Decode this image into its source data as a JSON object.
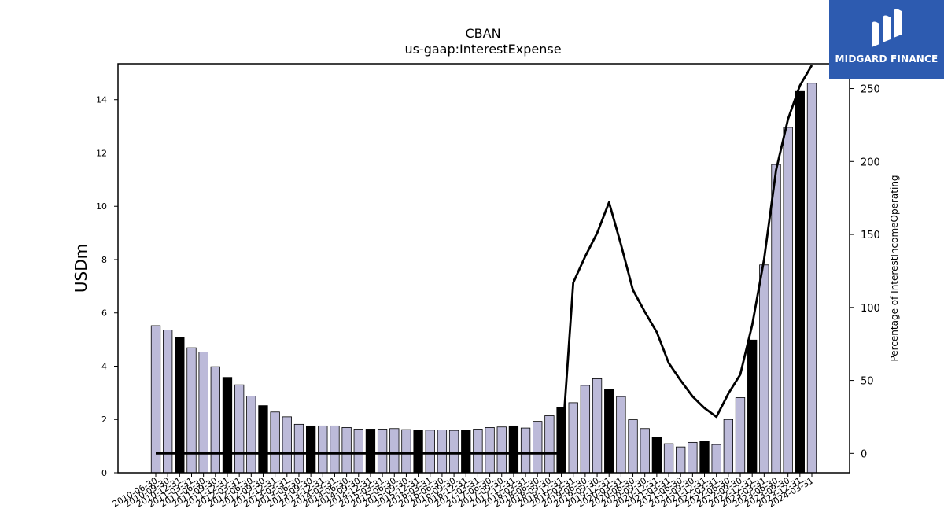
{
  "brand": {
    "name": "MIDGARD FINANCE",
    "bg_color": "#2d5bb0",
    "icon": "midgard-m-logo"
  },
  "chart_data": {
    "type": "bar",
    "title": "CBAN",
    "subtitle": "us-gaap:InterestExpense",
    "ylabel": "USDm",
    "y2label": "Percentage of InterestIncomeOperating",
    "ylim": [
      0,
      15.35
    ],
    "y2lim": [
      -13.3,
      267
    ],
    "yticks": [
      0,
      2,
      4,
      6,
      8,
      10,
      12,
      14
    ],
    "y2ticks": [
      0,
      50,
      100,
      150,
      200,
      250
    ],
    "grid": false,
    "bar_fill": "#bcbad9",
    "highlight_fill": "#000000",
    "line_color": "#000000",
    "categories": [
      "2010-06-30",
      "2010-09-30",
      "2010-12-31",
      "2011-03-31",
      "2011-06-30",
      "2011-09-30",
      "2011-12-31",
      "2012-03-31",
      "2012-06-30",
      "2012-09-30",
      "2012-12-31",
      "2013-03-31",
      "2013-06-30",
      "2013-09-30",
      "2013-12-31",
      "2014-03-31",
      "2014-06-30",
      "2014-09-30",
      "2014-12-31",
      "2015-03-31",
      "2015-06-30",
      "2015-09-30",
      "2015-12-31",
      "2016-03-31",
      "2016-06-30",
      "2016-09-30",
      "2016-12-31",
      "2017-03-31",
      "2017-06-30",
      "2017-09-30",
      "2017-12-31",
      "2018-03-31",
      "2018-06-30",
      "2018-09-30",
      "2018-12-31",
      "2019-03-31",
      "2019-06-30",
      "2019-09-30",
      "2019-12-31",
      "2020-03-31",
      "2020-06-30",
      "2020-09-30",
      "2020-12-31",
      "2021-03-31",
      "2021-06-30",
      "2021-09-30",
      "2021-12-31",
      "2022-03-31",
      "2022-06-30",
      "2022-09-30",
      "2022-12-31",
      "2023-03-31",
      "2023-06-30",
      "2023-09-30",
      "2023-12-31",
      "2024-03-31"
    ],
    "tick_labels": [
      "2010-06-30",
      "2010-09-30",
      "2010-12-31",
      "2011-03-31",
      "2011-06-30",
      "2011-09-30",
      "2011-12-31",
      "2012-03-31",
      "2012-06-30",
      "2012-09-30",
      "2012-12-31",
      "2013-03-31",
      "2013-06-30",
      "2013-09-30",
      "2013-12-31",
      "2014-03-31",
      "2014-06-30",
      "2014-09-30",
      "2014-12-31",
      "2015-03-31",
      "2015-06-30",
      "2015-09-30",
      "2015-12-31",
      "2016-03-31",
      "2016-06-30",
      "2016-09-30",
      "2016-12-31",
      "2017-03-31",
      "2017-06-30",
      "2017-09-30",
      "2017-12-31",
      "2018-03-31",
      "2018-06-30",
      "2018-09-30",
      "2018-12-31",
      "2019-03-31",
      "2019-06-30",
      "2019-09-30",
      "2019-12-31",
      "2020-03-31",
      "2020-06-30",
      "2020-09-30",
      "2020-12-31",
      "2021-03-31",
      "2021-06-30",
      "2021-09-30",
      "2021-12-31",
      "2022-03-31",
      "2022-06-30",
      "2022-09-30",
      "2022-12-31",
      "2023-03-31",
      "2023-06-30",
      "2023-09-30",
      "2023-12-31",
      "2024-03-31"
    ],
    "series": [
      {
        "kind": "bar",
        "axis": "left",
        "values": [
          5.52,
          5.36,
          5.07,
          4.69,
          4.53,
          3.98,
          3.58,
          3.3,
          2.88,
          2.52,
          2.28,
          2.1,
          1.82,
          1.76,
          1.76,
          1.76,
          1.7,
          1.64,
          1.64,
          1.64,
          1.66,
          1.62,
          1.59,
          1.6,
          1.61,
          1.59,
          1.6,
          1.64,
          1.7,
          1.72,
          1.76,
          1.68,
          1.93,
          2.14,
          2.44,
          2.63,
          3.28,
          3.53,
          3.14,
          2.86,
          1.99,
          1.66,
          1.32,
          1.09,
          0.97,
          1.14,
          1.18,
          1.06,
          2.0,
          2.82,
          4.98,
          7.8,
          11.57,
          12.96,
          14.31,
          14.62
        ],
        "highlighted": [
          false,
          false,
          true,
          false,
          false,
          false,
          true,
          false,
          false,
          true,
          false,
          false,
          false,
          true,
          false,
          false,
          false,
          false,
          true,
          false,
          false,
          false,
          true,
          false,
          false,
          false,
          true,
          false,
          false,
          false,
          true,
          false,
          false,
          false,
          true,
          false,
          false,
          false,
          true,
          false,
          false,
          false,
          true,
          false,
          false,
          false,
          true,
          false,
          false,
          false,
          true,
          false,
          false,
          false,
          true,
          false
        ]
      },
      {
        "kind": "line",
        "axis": "right",
        "start_index": 0,
        "values": [
          0,
          0,
          0,
          0,
          0,
          0,
          0,
          0,
          0,
          0,
          0,
          0,
          0,
          0,
          0,
          0,
          0,
          0,
          0,
          0,
          0,
          0,
          0,
          0,
          0,
          0,
          0,
          0,
          0,
          0,
          0,
          0,
          0,
          0,
          0,
          117,
          135,
          151,
          172,
          143,
          112,
          97,
          83,
          62,
          50,
          39,
          31,
          25,
          41,
          54,
          88,
          133,
          194,
          229,
          252,
          266
        ]
      }
    ]
  }
}
